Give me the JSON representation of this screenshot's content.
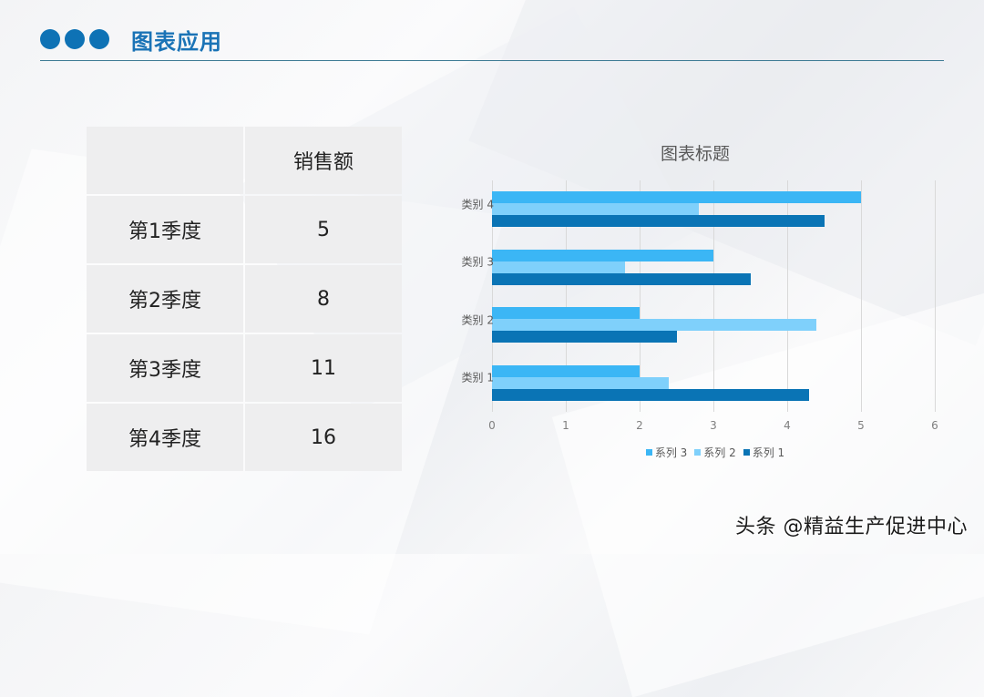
{
  "header": {
    "title": "图表应用",
    "accent_color": "#0e72b5"
  },
  "table": {
    "header": [
      "",
      "销售额"
    ],
    "rows": [
      {
        "label": "第1季度",
        "value": "5"
      },
      {
        "label": "第2季度",
        "value": "8"
      },
      {
        "label": "第3季度",
        "value": "11"
      },
      {
        "label": "第4季度",
        "value": "16"
      }
    ]
  },
  "chart_data": {
    "type": "bar",
    "orientation": "horizontal",
    "title": "图表标题",
    "categories": [
      "类别 1",
      "类别 2",
      "类别 3",
      "类别 4"
    ],
    "series": [
      {
        "name": "系列 1",
        "color": "#0a74b5",
        "values": [
          4.3,
          2.5,
          3.5,
          4.5
        ]
      },
      {
        "name": "系列 2",
        "color": "#7fd0fb",
        "values": [
          2.4,
          4.4,
          1.8,
          2.8
        ]
      },
      {
        "name": "系列 3",
        "color": "#3bb6f5",
        "values": [
          2,
          2,
          3,
          5
        ]
      }
    ],
    "xlabel": "",
    "ylabel": "",
    "xlim": [
      0,
      6
    ],
    "xticks": [
      "0",
      "1",
      "2",
      "3",
      "4",
      "5",
      "6"
    ],
    "grid": true,
    "legend_position": "bottom",
    "legend_order": [
      "系列 3",
      "系列 2",
      "系列 1"
    ]
  },
  "watermark": "头条 @精益生产促进中心"
}
